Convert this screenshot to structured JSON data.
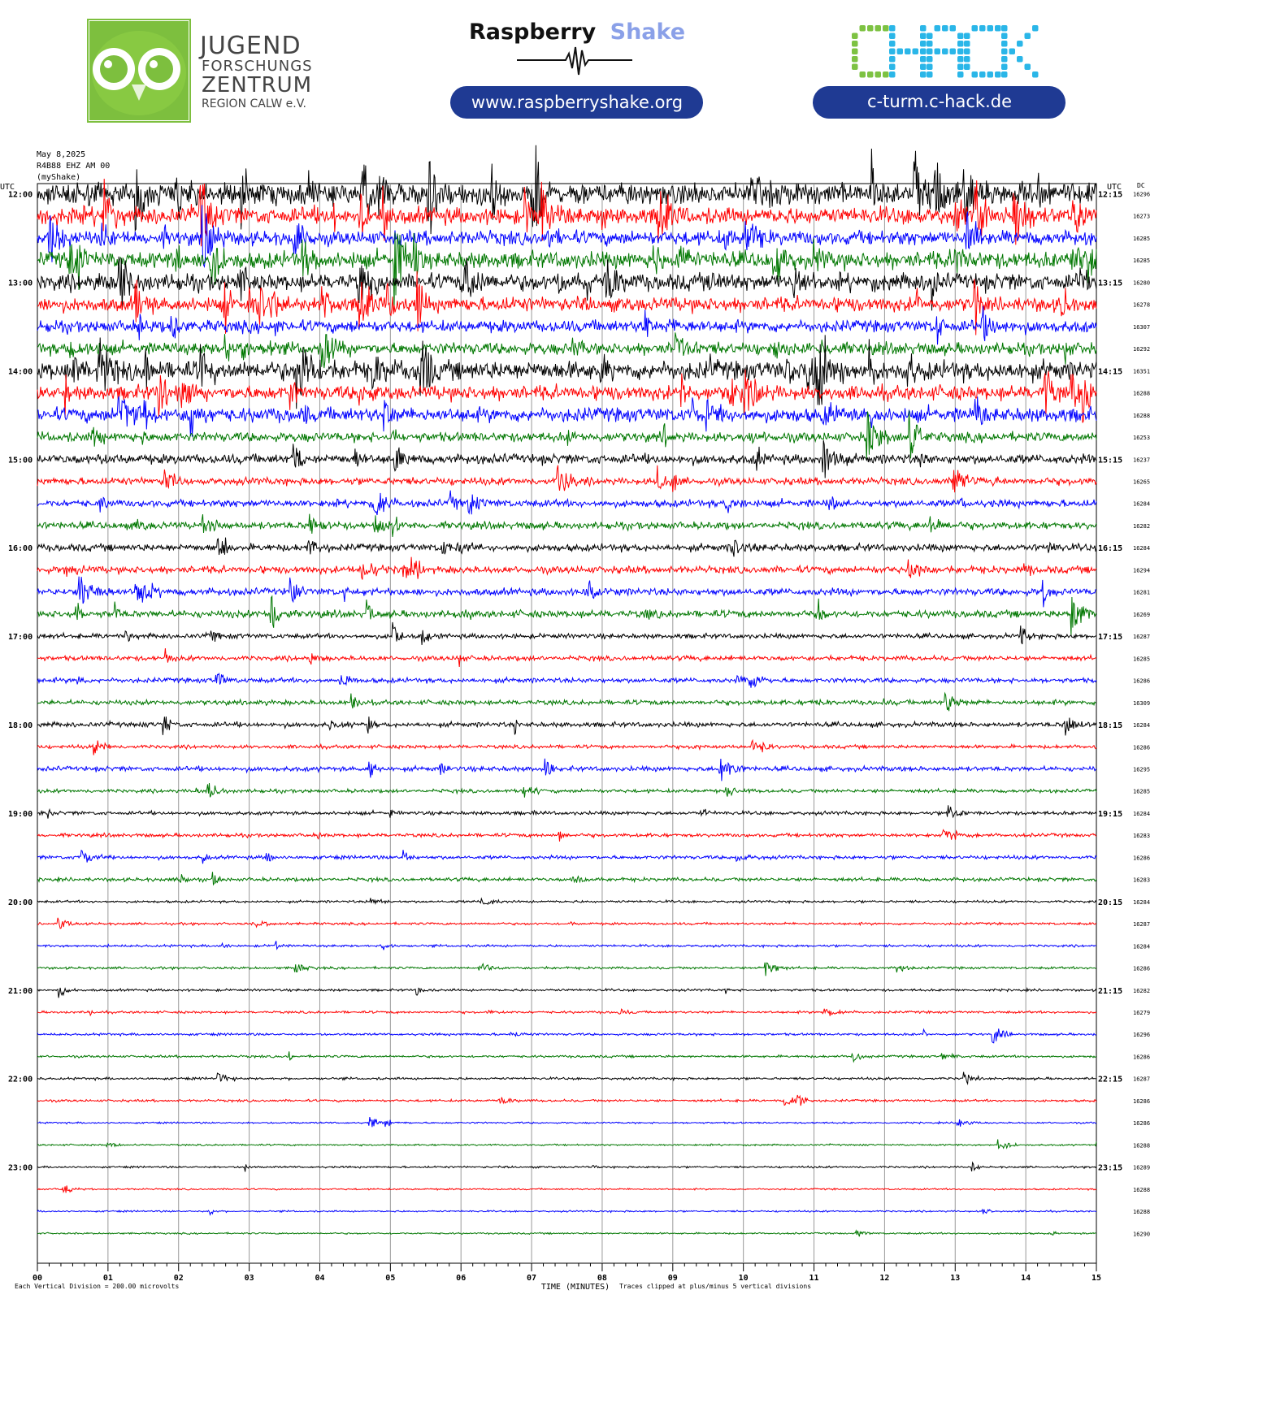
{
  "header": {
    "jfz": {
      "line1": "JUGEND",
      "line2": "FORSCHUNGS",
      "line3": "ZENTRUM",
      "line4": "REGION CALW e.V.",
      "color": "#7dbf3e"
    },
    "raspberry": {
      "word1": "Raspberry",
      "word2": "Shake",
      "url": "www.raspberryshake.org",
      "accent": "#8aa0e8",
      "pill_color": "#1f3a93"
    },
    "chack": {
      "logo_text": "CHACK",
      "url": "c-turm.c-hack.de",
      "green": "#7dc242",
      "cyan": "#2ab6e8",
      "pill_color": "#1f3a93"
    }
  },
  "chart_data": {
    "type": "line",
    "meta": {
      "date": "May 8,2025",
      "station": "R4B88 EHZ AM 00",
      "source": "(myShake)"
    },
    "left_header": "UTC",
    "right_header": "UTC",
    "dc_header": "DC",
    "xlabel": "TIME (MINUTES)",
    "x_ticks": [
      "00",
      "01",
      "02",
      "03",
      "04",
      "05",
      "06",
      "07",
      "08",
      "09",
      "10",
      "11",
      "12",
      "13",
      "14",
      "15"
    ],
    "footer_left": "Each Vertical Division =  200.00 microvolts",
    "footer_right": "Traces clipped at plus/minus 5 vertical divisions",
    "colors": [
      "#000000",
      "#ff0000",
      "#0000ff",
      "#007700"
    ],
    "left_labels": [
      "12:00",
      "13:00",
      "14:00",
      "15:00",
      "16:00",
      "17:00",
      "18:00",
      "19:00",
      "20:00",
      "21:00",
      "22:00",
      "23:00"
    ],
    "right_labels": [
      "12:15",
      "13:15",
      "14:15",
      "15:15",
      "16:15",
      "17:15",
      "18:15",
      "19:15",
      "20:15",
      "21:15",
      "22:15",
      "23:15"
    ],
    "dc_values": [
      16296,
      16273,
      16285,
      16285,
      16280,
      16278,
      16307,
      16292,
      16351,
      16288,
      16288,
      16253,
      16237,
      16265,
      16284,
      16282,
      16284,
      16294,
      16281,
      16269,
      16287,
      16285,
      16286,
      16309,
      16284,
      16286,
      16295,
      16285,
      16284,
      16283,
      16286,
      16283,
      16284,
      16287,
      16284,
      16286,
      16282,
      16279,
      16296,
      16286,
      16287,
      16286,
      16286,
      16288,
      16289,
      16288,
      16288,
      16290
    ],
    "noise_levels": [
      9,
      7,
      6,
      7,
      7,
      6,
      5,
      5,
      8,
      6,
      6,
      4,
      4,
      3,
      3,
      3,
      3,
      3,
      3,
      3,
      2,
      2,
      2,
      2,
      2,
      1.5,
      2,
      1.5,
      1.5,
      1.5,
      1.5,
      1.5,
      1,
      1,
      1,
      1,
      1,
      1,
      1,
      1,
      1,
      1,
      0.7,
      0.7,
      0.8,
      0.7,
      0.7,
      0.7
    ]
  }
}
